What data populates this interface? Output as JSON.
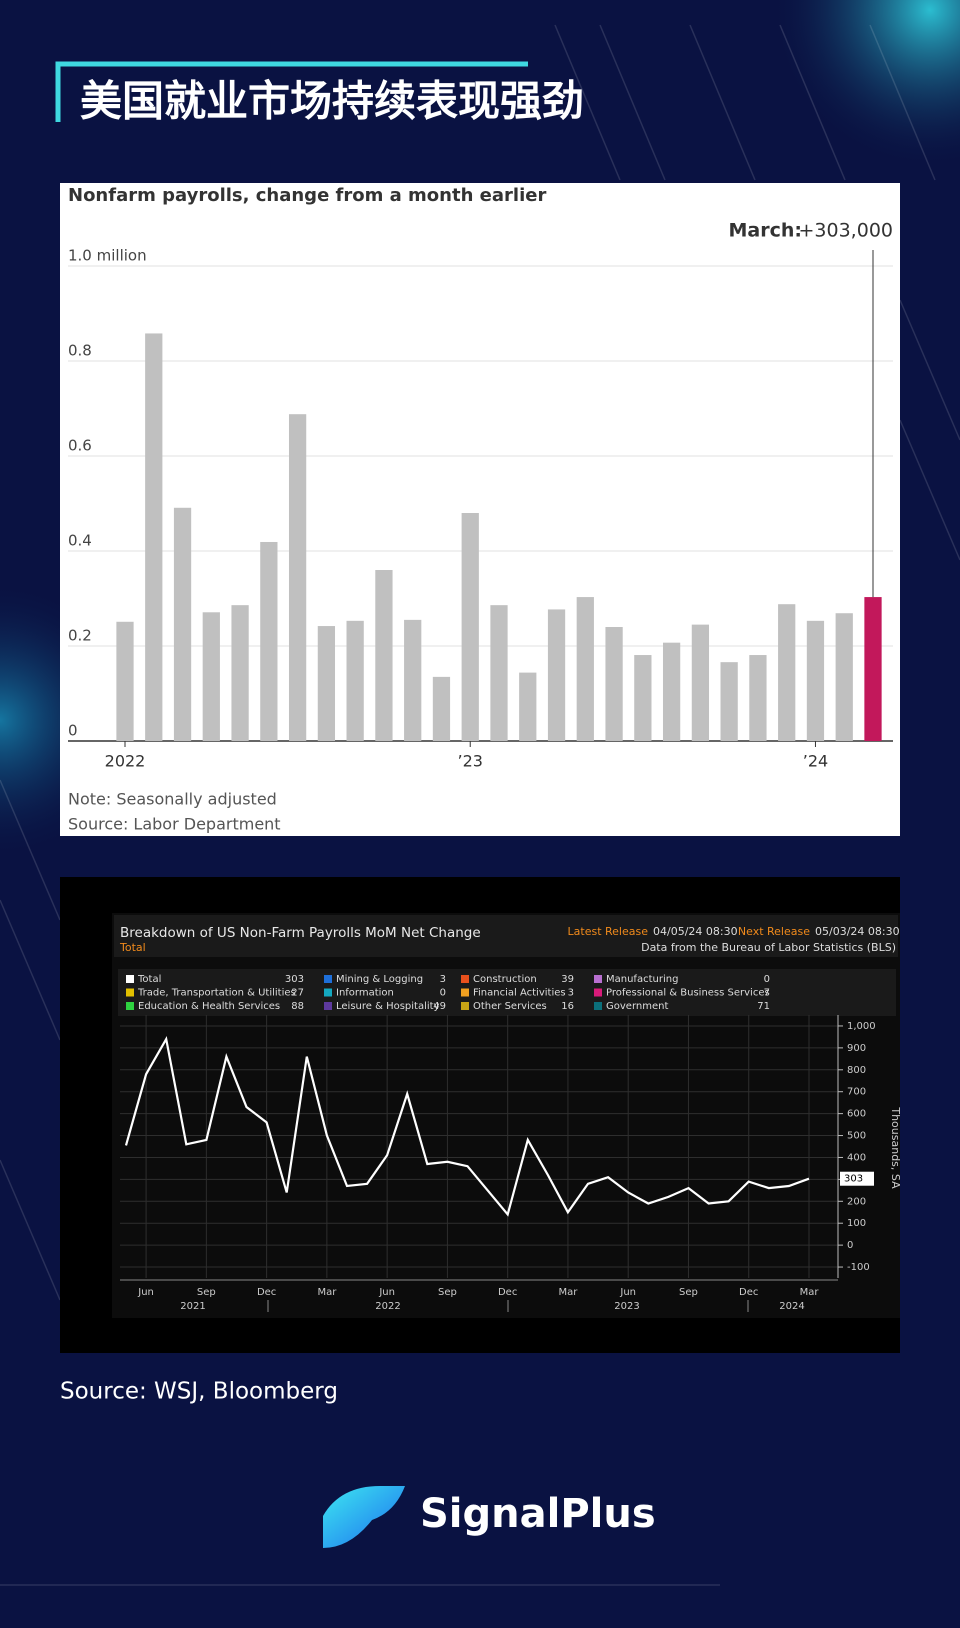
{
  "header": {
    "title": "美国就业市场持续表现强劲"
  },
  "chart_data": [
    {
      "type": "bar",
      "title": "Nonfarm payrolls, change from a month earlier",
      "annotation_label": "March:",
      "annotation_value": "+303,000",
      "categories": [
        "2022",
        null,
        null,
        null,
        null,
        null,
        null,
        null,
        null,
        null,
        null,
        null,
        "’23",
        null,
        null,
        null,
        null,
        null,
        null,
        null,
        null,
        null,
        null,
        null,
        "’24",
        null,
        null
      ],
      "values": [
        0.251,
        0.858,
        0.491,
        0.271,
        0.286,
        0.419,
        0.688,
        0.242,
        0.253,
        0.36,
        0.255,
        0.135,
        0.48,
        0.286,
        0.144,
        0.277,
        0.303,
        0.24,
        0.181,
        0.207,
        0.245,
        0.166,
        0.181,
        0.288,
        0.253,
        0.269,
        0.303
      ],
      "colors": [
        "#c0c0c0",
        "#c0c0c0",
        "#c0c0c0",
        "#c0c0c0",
        "#c0c0c0",
        "#c0c0c0",
        "#c0c0c0",
        "#c0c0c0",
        "#c0c0c0",
        "#c0c0c0",
        "#c0c0c0",
        "#c0c0c0",
        "#c0c0c0",
        "#c0c0c0",
        "#c0c0c0",
        "#c0c0c0",
        "#c0c0c0",
        "#c0c0c0",
        "#c0c0c0",
        "#c0c0c0",
        "#c0c0c0",
        "#c0c0c0",
        "#c0c0c0",
        "#c0c0c0",
        "#c0c0c0",
        "#c0c0c0",
        "#c2185b"
      ],
      "ylim": [
        0,
        1.0
      ],
      "yticks": [
        0,
        0.2,
        0.4,
        0.6,
        0.8,
        {
          "value": 1.0,
          "label": "1.0 million"
        }
      ],
      "grid": true,
      "note": "Note: Seasonally adjusted",
      "source": "Source: Labor Department"
    },
    {
      "type": "line",
      "title": "Breakdown of US Non-Farm Payrolls MoM Net Change",
      "subtitle": "Total",
      "latest_label": "Latest Release",
      "latest": "04/05/24 08:30",
      "next_label": "Next Release",
      "next": "05/03/24 08:30",
      "source_note": "Data from the Bureau of Labor Statistics (BLS)",
      "y_label": "Thousands, SA",
      "legend": [
        {
          "name": "Total",
          "value": 303,
          "color": "#ffffff"
        },
        {
          "name": "Mining & Logging",
          "value": 3,
          "color": "#1e6fd9"
        },
        {
          "name": "Construction",
          "value": 39,
          "color": "#e8501c"
        },
        {
          "name": "Manufacturing",
          "value": 0,
          "color": "#b86fd0"
        },
        {
          "name": "Trade, Transportation & Utilities",
          "value": 27,
          "color": "#e2c000"
        },
        {
          "name": "Information",
          "value": 0,
          "color": "#14a8c0"
        },
        {
          "name": "Financial Activities",
          "value": 3,
          "color": "#f0a020"
        },
        {
          "name": "Professional & Business Services",
          "value": 7,
          "color": "#d81b7a"
        },
        {
          "name": "Education & Health Services",
          "value": 88,
          "color": "#2ed240"
        },
        {
          "name": "Leisure & Hospitality",
          "value": 49,
          "color": "#5e3a9e"
        },
        {
          "name": "Other Services",
          "value": 16,
          "color": "#c8a415"
        },
        {
          "name": "Government",
          "value": 71,
          "color": "#0b6f7a"
        }
      ],
      "categories": [
        null,
        "Jun",
        null,
        null,
        "Sep",
        null,
        null,
        "Dec",
        null,
        null,
        "Mar",
        null,
        null,
        "Jun",
        null,
        null,
        "Sep",
        null,
        null,
        "Dec",
        null,
        null,
        "Mar",
        null,
        null,
        "Jun",
        null,
        null,
        "Sep",
        null,
        null,
        "Dec",
        null,
        null,
        "Mar"
      ],
      "year_labels": [
        "2021",
        "2022",
        "2023",
        "2024"
      ],
      "values": [
        455,
        780,
        940,
        460,
        480,
        860,
        630,
        560,
        240,
        860,
        500,
        270,
        280,
        410,
        690,
        370,
        380,
        360,
        250,
        140,
        480,
        320,
        150,
        280,
        310,
        240,
        190,
        220,
        260,
        190,
        200,
        290,
        260,
        270,
        303
      ],
      "color": "#ffffff",
      "ylim": [
        -150,
        1050
      ],
      "yticks": [
        -100,
        0,
        100,
        200,
        300,
        400,
        500,
        600,
        700,
        800,
        900,
        {
          "value": 1000,
          "label": "1,000"
        }
      ],
      "grid": true
    }
  ],
  "footer": {
    "source": "Source: WSJ, Bloomberg",
    "brand": "SignalPlus"
  }
}
